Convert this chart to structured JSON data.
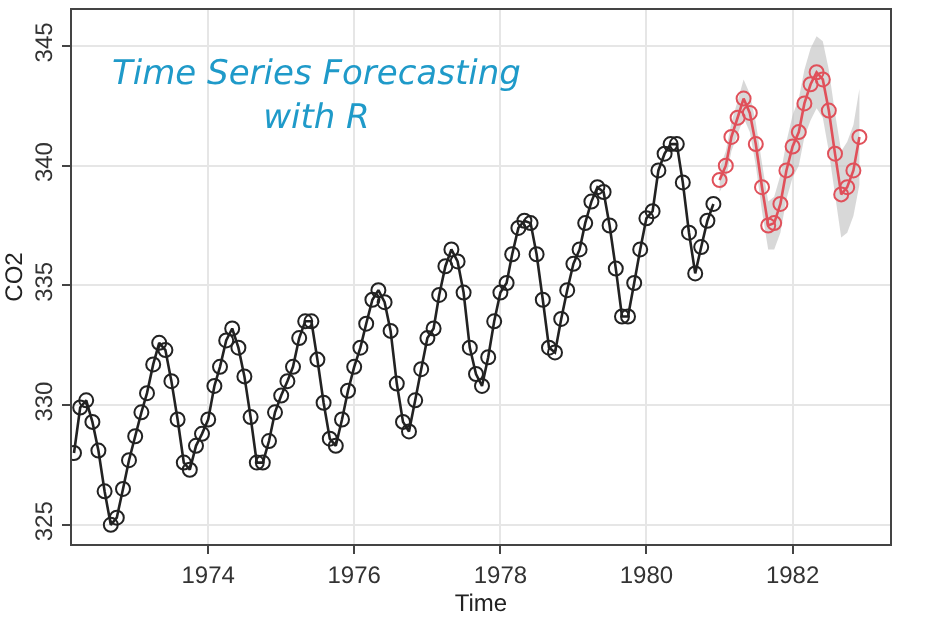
{
  "chart_data": {
    "type": "line",
    "title": "Time Series Forecasting\nwith R",
    "xlabel": "Time",
    "ylabel": "CO2",
    "xlim": [
      "1972-02-20",
      "1983-05-03"
    ],
    "xticks": [
      "1974",
      "1976",
      "1978",
      "1980",
      "1982"
    ],
    "ylim": [
      324.2,
      346.5
    ],
    "yticks": [
      325,
      330,
      335,
      340,
      345
    ],
    "grid": true,
    "marker": "circle",
    "line_style": "solid",
    "series": [
      {
        "color": "#222222",
        "x": [
          "1972-03",
          "1972-04",
          "1972-05",
          "1972-06",
          "1972-07",
          "1972-08",
          "1972-09",
          "1972-10",
          "1972-11",
          "1972-12",
          "1973-01",
          "1973-02",
          "1973-03",
          "1973-04",
          "1973-05",
          "1973-06",
          "1973-07",
          "1973-08",
          "1973-09",
          "1973-10",
          "1973-11",
          "1973-12",
          "1974-01",
          "1974-02",
          "1974-03",
          "1974-04",
          "1974-05",
          "1974-06",
          "1974-07",
          "1974-08",
          "1974-09",
          "1974-10",
          "1974-11",
          "1974-12",
          "1975-01",
          "1975-02",
          "1975-03",
          "1975-04",
          "1975-05",
          "1975-06",
          "1975-07",
          "1975-08",
          "1975-09",
          "1975-10",
          "1975-11",
          "1975-12",
          "1976-01",
          "1976-02",
          "1976-03",
          "1976-04",
          "1976-05",
          "1976-06",
          "1976-07",
          "1976-08",
          "1976-09",
          "1976-10",
          "1976-11",
          "1976-12",
          "1977-01",
          "1977-02",
          "1977-03",
          "1977-04",
          "1977-05",
          "1977-06",
          "1977-07",
          "1977-08",
          "1977-09",
          "1977-10",
          "1977-11",
          "1977-12",
          "1978-01",
          "1978-02",
          "1978-03",
          "1978-04",
          "1978-05",
          "1978-06",
          "1978-07",
          "1978-08",
          "1978-09",
          "1978-10",
          "1978-11",
          "1978-12",
          "1979-01",
          "1979-02",
          "1979-03",
          "1979-04",
          "1979-05",
          "1979-06",
          "1979-07",
          "1979-08",
          "1979-09",
          "1979-10",
          "1979-11",
          "1979-12",
          "1980-01",
          "1980-02",
          "1980-03",
          "1980-04",
          "1980-05",
          "1980-06",
          "1980-07",
          "1980-08",
          "1980-09",
          "1980-10",
          "1980-11",
          "1980-12"
        ],
        "values": [
          328.0,
          329.9,
          330.2,
          329.3,
          328.1,
          326.4,
          325.0,
          325.3,
          326.5,
          327.7,
          328.7,
          329.7,
          330.5,
          331.7,
          332.6,
          332.3,
          331.0,
          329.4,
          327.6,
          327.3,
          328.3,
          328.8,
          329.4,
          330.8,
          331.6,
          332.7,
          333.2,
          332.4,
          331.2,
          329.5,
          327.6,
          327.6,
          328.5,
          329.7,
          330.4,
          331.0,
          331.6,
          332.8,
          333.5,
          333.5,
          331.9,
          330.1,
          328.6,
          328.3,
          329.4,
          330.6,
          331.6,
          332.4,
          333.4,
          334.4,
          334.8,
          334.3,
          333.1,
          330.9,
          329.3,
          328.9,
          330.2,
          331.5,
          332.8,
          333.2,
          334.6,
          335.8,
          336.5,
          336.0,
          334.7,
          332.4,
          331.3,
          330.8,
          332.0,
          333.5,
          334.7,
          335.1,
          336.3,
          337.4,
          337.7,
          337.6,
          336.3,
          334.4,
          332.4,
          332.2,
          333.6,
          334.8,
          335.9,
          336.5,
          337.6,
          338.5,
          339.1,
          338.9,
          337.5,
          335.7,
          333.7,
          333.7,
          335.1,
          336.5,
          337.8,
          338.1,
          339.8,
          340.5,
          340.9,
          340.9,
          339.3,
          337.2,
          335.5,
          336.6,
          337.7,
          338.4
        ]
      },
      {
        "color": "#e0505a",
        "x": [
          "1981-01",
          "1981-02",
          "1981-03",
          "1981-04",
          "1981-05",
          "1981-06",
          "1981-07",
          "1981-08",
          "1981-09",
          "1981-10",
          "1981-11",
          "1981-12",
          "1982-01",
          "1982-02",
          "1982-03",
          "1982-04",
          "1982-05",
          "1982-06",
          "1982-07",
          "1982-08",
          "1982-09",
          "1982-10",
          "1982-11",
          "1982-12"
        ],
        "values": [
          339.4,
          340.0,
          341.2,
          342.0,
          342.8,
          342.2,
          340.9,
          339.1,
          337.5,
          337.6,
          338.4,
          339.8,
          340.8,
          341.4,
          342.6,
          343.4,
          343.9,
          343.6,
          342.3,
          340.5,
          338.8,
          339.1,
          339.8,
          341.2
        ],
        "lower": [
          338.9,
          339.4,
          340.6,
          341.3,
          342.0,
          341.4,
          340.0,
          338.1,
          336.5,
          336.5,
          337.2,
          338.6,
          339.5,
          340.0,
          341.2,
          341.9,
          342.4,
          342.0,
          340.6,
          338.8,
          337.0,
          337.2,
          337.9,
          339.2
        ],
        "upper": [
          339.9,
          340.6,
          341.8,
          342.7,
          343.6,
          343.0,
          341.8,
          340.1,
          338.5,
          338.7,
          339.6,
          341.0,
          342.1,
          342.8,
          344.0,
          344.9,
          345.4,
          345.2,
          344.0,
          342.2,
          340.6,
          341.0,
          341.7,
          343.2
        ]
      }
    ]
  }
}
